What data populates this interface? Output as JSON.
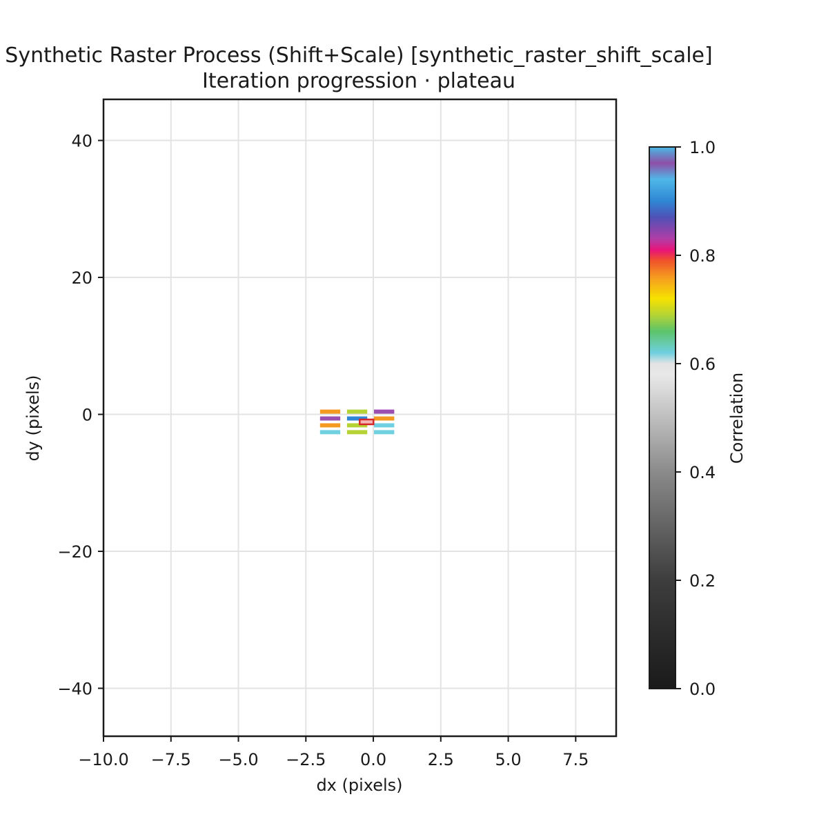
{
  "chart_data": {
    "type": "heatmap",
    "title": "Synthetic Raster Process (Shift+Scale) [synthetic_raster_shift_scale]",
    "subtitle": "Iteration progression · plateau",
    "xlabel": "dx (pixels)",
    "ylabel": "dy (pixels)",
    "xlim": [
      -10,
      9
    ],
    "ylim": [
      -47,
      46
    ],
    "xticks": [
      -10.0,
      -7.5,
      -5.0,
      -2.5,
      0.0,
      2.5,
      5.0,
      7.5
    ],
    "xtick_labels": [
      "−10.0",
      "−7.5",
      "−5.0",
      "−2.5",
      "0.0",
      "2.5",
      "5.0",
      "7.5"
    ],
    "yticks": [
      -40,
      -20,
      0,
      20,
      40
    ],
    "ytick_labels": [
      "−40",
      "−20",
      "0",
      "20",
      "40"
    ],
    "grid": true,
    "colorbar": {
      "label": "Correlation",
      "range": [
        0.0,
        1.0
      ],
      "ticks": [
        0.0,
        0.2,
        0.4,
        0.6,
        0.8,
        1.0
      ],
      "tick_labels": [
        "0.0",
        "0.2",
        "0.4",
        "0.6",
        "0.8",
        "1.0"
      ]
    },
    "cell_width": 0.75,
    "cell_height": 0.6,
    "cells": [
      {
        "dx": -1.6,
        "dy": 0.4,
        "corr": 0.76
      },
      {
        "dx": -1.6,
        "dy": -0.6,
        "corr": 0.89
      },
      {
        "dx": -1.6,
        "dy": -1.6,
        "corr": 0.76
      },
      {
        "dx": -1.6,
        "dy": -2.6,
        "corr": 0.62
      },
      {
        "dx": -0.6,
        "dy": 0.4,
        "corr": 0.68
      },
      {
        "dx": -0.6,
        "dy": -0.6,
        "corr": 0.9
      },
      {
        "dx": -0.6,
        "dy": -1.6,
        "corr": 0.68
      },
      {
        "dx": -0.6,
        "dy": -2.6,
        "corr": 0.68
      },
      {
        "dx": 0.4,
        "dy": 0.4,
        "corr": 0.89
      },
      {
        "dx": 0.4,
        "dy": -0.6,
        "corr": 0.76
      },
      {
        "dx": 0.4,
        "dy": -1.6,
        "corr": 0.62
      },
      {
        "dx": 0.4,
        "dy": -2.6,
        "corr": 0.62
      }
    ],
    "best": {
      "dx": -0.25,
      "dy": -1.1,
      "color": "#d62728"
    }
  }
}
